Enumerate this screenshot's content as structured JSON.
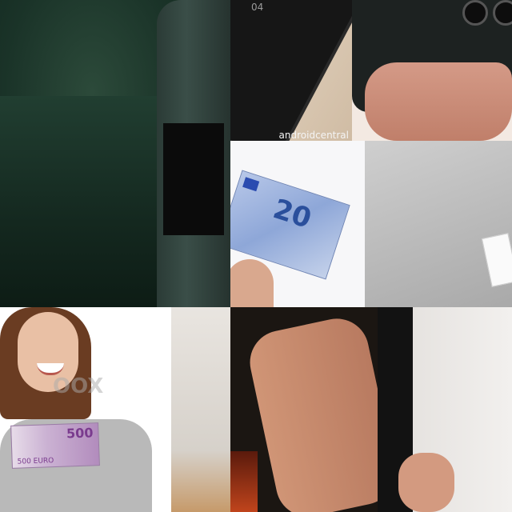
{
  "tiles": {
    "phone": {
      "screen_text": "04",
      "watermark": "androidcentral"
    },
    "euro20": {
      "denomination": "20"
    },
    "woman": {
      "denomination": "500",
      "denomination_small": "500 EURO",
      "watermark": "OOX"
    }
  }
}
